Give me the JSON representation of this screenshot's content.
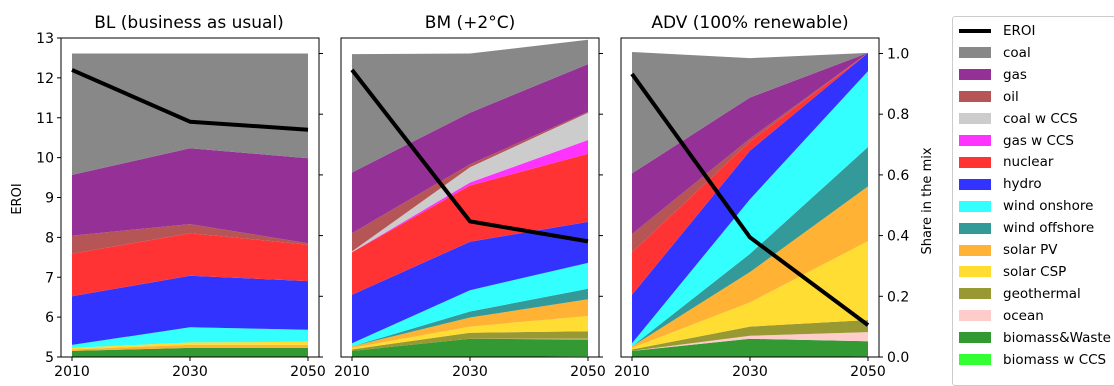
{
  "chart_data": [
    {
      "type": "area",
      "title": "BL (business as usual)",
      "x": [
        2010,
        2030,
        2050
      ],
      "ylabel": "EROI",
      "ylim": [
        5,
        13
      ],
      "yticks": [
        "5",
        "6",
        "7",
        "8",
        "9",
        "10",
        "11",
        "12",
        "13"
      ],
      "xticks": [
        "2010",
        "2030",
        "2050"
      ],
      "share_ylim": [
        0,
        1.0
      ],
      "shares": {
        "biomass&Waste": [
          0.02,
          0.03,
          0.03
        ],
        "solar PV": [
          0.005,
          0.01,
          0.01
        ],
        "solar CSP": [
          0.005,
          0.008,
          0.01
        ],
        "wind onshore": [
          0.01,
          0.05,
          0.04
        ],
        "hydro": [
          0.16,
          0.17,
          0.16
        ],
        "nuclear": [
          0.14,
          0.14,
          0.12
        ],
        "oil": [
          0.06,
          0.03,
          0.005
        ],
        "gas": [
          0.2,
          0.25,
          0.28
        ],
        "coal": [
          0.4,
          0.312,
          0.345
        ]
      },
      "series": [
        {
          "name": "EROI",
          "values": [
            12.2,
            10.9,
            10.7
          ]
        }
      ]
    },
    {
      "type": "area",
      "title": "BM (+2°C)",
      "x": [
        2010,
        2030,
        2050
      ],
      "xticks": [
        "2010",
        "2030",
        "2050"
      ],
      "share_ylim": [
        0,
        1.0
      ],
      "shares": {
        "biomass w CCS": [
          0,
          0,
          0.003
        ],
        "biomass&Waste": [
          0.02,
          0.06,
          0.055
        ],
        "ocean": [
          0,
          0,
          0.002
        ],
        "geothermal": [
          0.005,
          0.02,
          0.025
        ],
        "solar CSP": [
          0.005,
          0.02,
          0.05
        ],
        "solar PV": [
          0.005,
          0.03,
          0.055
        ],
        "wind offshore": [
          0,
          0.02,
          0.035
        ],
        "wind onshore": [
          0.01,
          0.07,
          0.085
        ],
        "hydro": [
          0.16,
          0.16,
          0.135
        ],
        "nuclear": [
          0.14,
          0.185,
          0.225
        ],
        "gas w CCS": [
          0,
          0.01,
          0.045
        ],
        "coal w CCS": [
          0.003,
          0.05,
          0.09
        ],
        "oil": [
          0.06,
          0.01,
          0.003
        ],
        "gas": [
          0.2,
          0.17,
          0.157
        ],
        "coal": [
          0.39,
          0.195,
          0.08
        ]
      },
      "series": [
        {
          "name": "EROI",
          "values": [
            12.2,
            8.4,
            7.9
          ]
        }
      ]
    },
    {
      "type": "area",
      "title": "ADV (100% renewable)",
      "x": [
        2010,
        2030,
        2050
      ],
      "xticks": [
        "2010",
        "2030",
        "2050"
      ],
      "yticks_right": [
        "0.0",
        "0.2",
        "0.4",
        "0.6",
        "0.8",
        "1.0"
      ],
      "ylabel_right": "Share in the mix",
      "share_ylim": [
        0,
        1.0
      ],
      "shares": {
        "biomass w CCS": [
          0,
          0,
          0.002
        ],
        "biomass&Waste": [
          0.02,
          0.06,
          0.05
        ],
        "ocean": [
          0,
          0.01,
          0.03
        ],
        "geothermal": [
          0.005,
          0.03,
          0.04
        ],
        "solar CSP": [
          0.005,
          0.08,
          0.26
        ],
        "solar PV": [
          0.005,
          0.1,
          0.18
        ],
        "wind offshore": [
          0,
          0.06,
          0.13
        ],
        "wind onshore": [
          0.01,
          0.18,
          0.25
        ],
        "hydro": [
          0.16,
          0.16,
          0.06
        ],
        "nuclear": [
          0.14,
          0.03,
          0
        ],
        "oil": [
          0.06,
          0.01,
          0
        ],
        "gas": [
          0.2,
          0.135,
          0
        ],
        "coal": [
          0.4,
          0.13,
          0
        ]
      },
      "series": [
        {
          "name": "EROI",
          "values": [
            12.1,
            8.0,
            5.8
          ]
        }
      ]
    }
  ],
  "legend": {
    "placement": "right",
    "items": [
      {
        "label": "EROI",
        "color": "#000000",
        "kind": "line"
      },
      {
        "label": "coal",
        "color": "#888888"
      },
      {
        "label": "gas",
        "color": "#953097"
      },
      {
        "label": "oil",
        "color": "#b65555"
      },
      {
        "label": "coal w CCS",
        "color": "#cccccc"
      },
      {
        "label": "gas w CCS",
        "color": "#ff33ff"
      },
      {
        "label": "nuclear",
        "color": "#ff3333"
      },
      {
        "label": "hydro",
        "color": "#3333ff"
      },
      {
        "label": "wind onshore",
        "color": "#33ffff"
      },
      {
        "label": "wind offshore",
        "color": "#339999"
      },
      {
        "label": "solar PV",
        "color": "#ffb233"
      },
      {
        "label": "solar CSP",
        "color": "#ffdd33"
      },
      {
        "label": "geothermal",
        "color": "#999933"
      },
      {
        "label": "ocean",
        "color": "#ffcccc"
      },
      {
        "label": "biomass&Waste",
        "color": "#339933"
      },
      {
        "label": "biomass w CCS",
        "color": "#33ff33"
      }
    ]
  }
}
